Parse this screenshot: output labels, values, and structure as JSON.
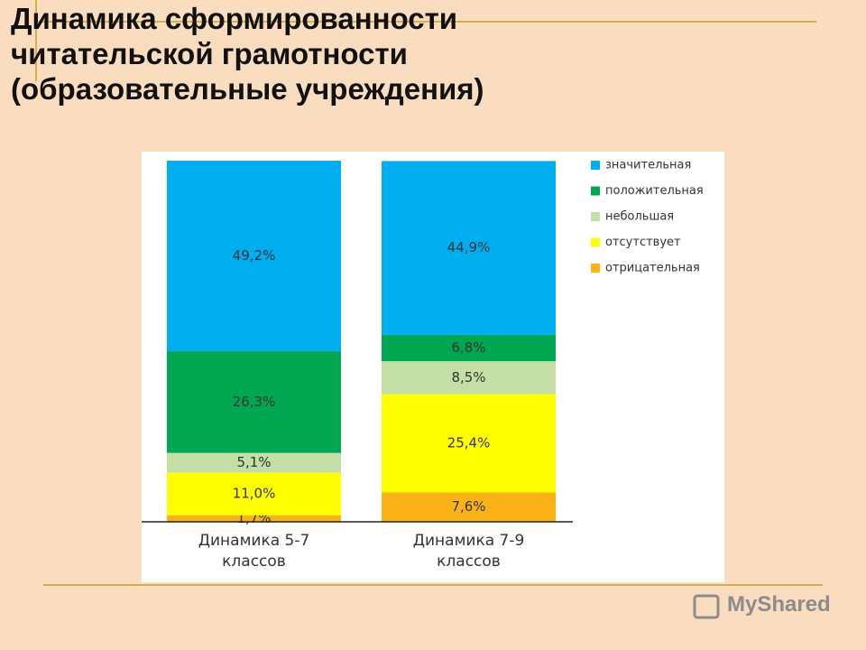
{
  "chart_data": {
    "type": "stacked-bar",
    "title": [
      "Динамика сформированности",
      "читательской грамотности",
      "(образовательные учреждения)"
    ],
    "categories": [
      "Динамика 5-7 классов",
      "Динамика 7-9 классов"
    ],
    "series": [
      {
        "name": "значительная",
        "color": "#00aeef",
        "values": [
          49.2,
          44.9
        ],
        "value_labels": [
          "49,2%",
          "44,9%"
        ]
      },
      {
        "name": "положительная",
        "color": "#00a650",
        "values": [
          26.3,
          6.8
        ],
        "value_labels": [
          "26,3%",
          "6,8%"
        ]
      },
      {
        "name": "небольшая",
        "color": "#c4dfa5",
        "values": [
          5.1,
          8.5
        ],
        "value_labels": [
          "5,1%",
          "8,5%"
        ]
      },
      {
        "name": "отсутствует",
        "color": "#ffff00",
        "values": [
          11.0,
          25.4
        ],
        "value_labels": [
          "11,0%",
          "25,4%"
        ]
      },
      {
        "name": "отрицательная",
        "color": "#fbb217",
        "values": [
          1.7,
          7.6
        ],
        "value_labels": [
          "1,7%",
          "7,6%"
        ]
      }
    ],
    "ylim": [
      0,
      93.3
    ],
    "legend": "right",
    "watermark": "MyShared"
  }
}
